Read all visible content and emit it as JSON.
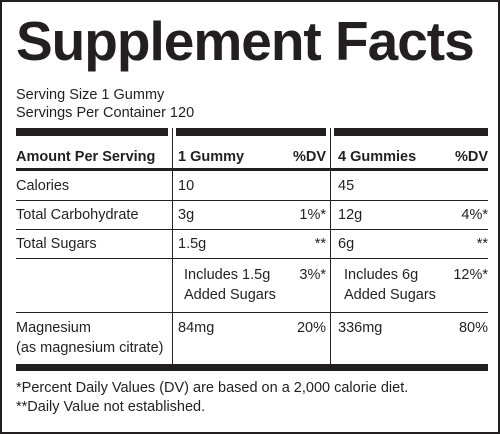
{
  "title": "Supplement Facts",
  "serving_size": "Serving Size 1 Gummy",
  "servings_per_container": "Servings Per Container 120",
  "header": {
    "amount_per_serving": "Amount Per Serving",
    "col1_label": "1 Gummy",
    "col1_dv": "%DV",
    "col2_label": "4 Gummies",
    "col2_dv": "%DV"
  },
  "rows": [
    {
      "name": "Calories",
      "v1": "10",
      "dv1": "",
      "v2": "45",
      "dv2": ""
    },
    {
      "name": "Total Carbohydrate",
      "v1": "3g",
      "dv1": "1%*",
      "v2": "12g",
      "dv2": "4%*"
    },
    {
      "name": "Total Sugars",
      "v1": "1.5g",
      "dv1": "**",
      "v2": "6g",
      "dv2": "**"
    },
    {
      "name": "",
      "v1_line1": "Includes 1.5g",
      "v1_line2": "Added Sugars",
      "dv1": "3%*",
      "v2_line1": "Includes 6g",
      "v2_line2": "Added Sugars",
      "dv2": "12%*"
    },
    {
      "name_line1": "Magnesium",
      "name_line2": "(as magnesium citrate)",
      "v1": "84mg",
      "dv1": "20%",
      "v2": "336mg",
      "dv2": "80%"
    }
  ],
  "footnotes": [
    "*Percent Daily Values (DV) are based on a 2,000 calorie diet.",
    "**Daily Value not established."
  ],
  "colors": {
    "text": "#231f20",
    "background": "#ffffff"
  }
}
